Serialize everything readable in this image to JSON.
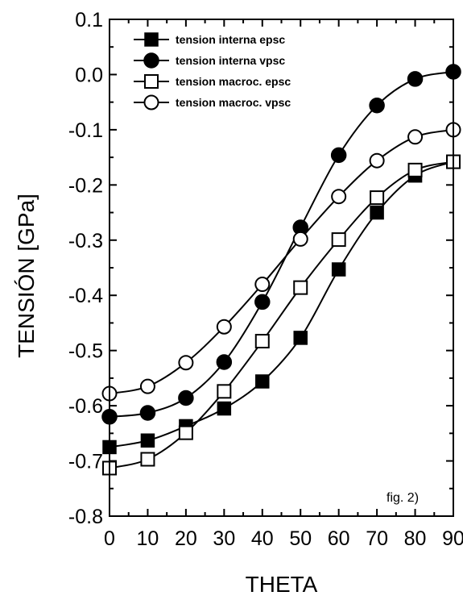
{
  "chart_data": {
    "type": "line",
    "xlabel": "THETA",
    "ylabel": "TENSIÓN [GPa]",
    "annotation": "fig. 2)",
    "xlim": [
      0,
      90
    ],
    "ylim": [
      -0.8,
      0.1
    ],
    "xticks": [
      0,
      10,
      20,
      30,
      40,
      50,
      60,
      70,
      80,
      90
    ],
    "yticks": [
      0.1,
      0.0,
      -0.1,
      -0.2,
      -0.3,
      -0.4,
      -0.5,
      -0.6,
      -0.7,
      -0.8
    ],
    "ytick_labels": [
      "0.1",
      "0.0",
      "-0.1",
      "-0.2",
      "-0.3",
      "-0.4",
      "-0.5",
      "-0.6",
      "-0.7",
      "-0.8"
    ],
    "grid": false,
    "legend_position": "top-left",
    "x": [
      0,
      10,
      20,
      30,
      40,
      50,
      60,
      70,
      80,
      90
    ],
    "series": [
      {
        "name": "tension interna epsc",
        "marker": "filled-square",
        "values": [
          -0.675,
          -0.663,
          -0.637,
          -0.605,
          -0.556,
          -0.477,
          -0.353,
          -0.25,
          -0.183,
          -0.158
        ]
      },
      {
        "name": "tension interna vpsc",
        "marker": "filled-circle",
        "values": [
          -0.62,
          -0.613,
          -0.586,
          -0.521,
          -0.412,
          -0.277,
          -0.146,
          -0.056,
          -0.008,
          0.005
        ]
      },
      {
        "name": "tension macroc. epsc",
        "marker": "open-square",
        "values": [
          -0.713,
          -0.697,
          -0.649,
          -0.574,
          -0.483,
          -0.386,
          -0.299,
          -0.223,
          -0.173,
          -0.158
        ]
      },
      {
        "name": "tension macroc. vpsc",
        "marker": "open-circle",
        "values": [
          -0.578,
          -0.565,
          -0.522,
          -0.457,
          -0.38,
          -0.298,
          -0.221,
          -0.156,
          -0.113,
          -0.1
        ]
      }
    ]
  }
}
